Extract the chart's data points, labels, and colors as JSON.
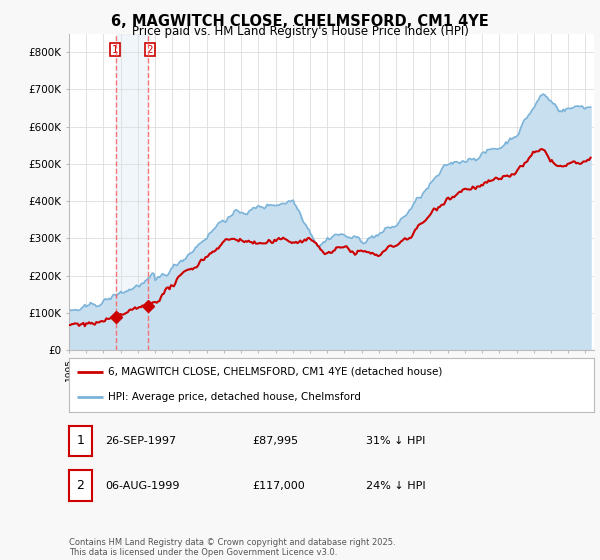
{
  "title": "6, MAGWITCH CLOSE, CHELMSFORD, CM1 4YE",
  "subtitle": "Price paid vs. HM Land Registry's House Price Index (HPI)",
  "yticks": [
    0,
    100000,
    200000,
    300000,
    400000,
    500000,
    600000,
    700000,
    800000
  ],
  "ytick_labels": [
    "£0",
    "£100K",
    "£200K",
    "£300K",
    "£400K",
    "£500K",
    "£600K",
    "£700K",
    "£800K"
  ],
  "xlim_start": 1995.0,
  "xlim_end": 2025.5,
  "ylim": [
    0,
    850000
  ],
  "hpi_color": "#7bb3d9",
  "hpi_fill_color": "#c8dff0",
  "price_color": "#cc0000",
  "transaction1_date": 1997.74,
  "transaction1_price": 87995,
  "transaction2_date": 1999.59,
  "transaction2_price": 117000,
  "legend_price_label": "6, MAGWITCH CLOSE, CHELMSFORD, CM1 4YE (detached house)",
  "legend_hpi_label": "HPI: Average price, detached house, Chelmsford",
  "table_row1": [
    "1",
    "26-SEP-1997",
    "£87,995",
    "31% ↓ HPI"
  ],
  "table_row2": [
    "2",
    "06-AUG-1999",
    "£117,000",
    "24% ↓ HPI"
  ],
  "footer": "Contains HM Land Registry data © Crown copyright and database right 2025.\nThis data is licensed under the Open Government Licence v3.0.",
  "background_color": "#f8f8f8",
  "plot_bg_color": "#ffffff",
  "grid_color": "#dddddd"
}
